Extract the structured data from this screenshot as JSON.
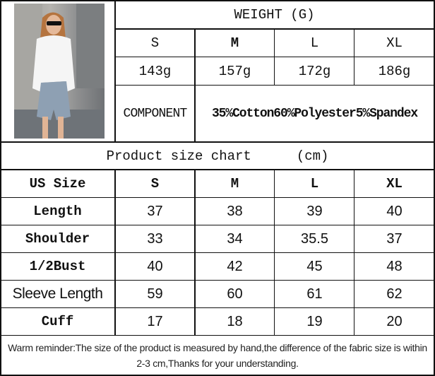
{
  "weight": {
    "title": "WEIGHT (G)",
    "sizes": [
      "S",
      "M",
      "L",
      "XL"
    ],
    "values": [
      "143g",
      "157g",
      "172g",
      "186g"
    ]
  },
  "component": {
    "label": "COMPONENT",
    "value": "35%Cotton60%Polyester5%Spandex"
  },
  "size_chart": {
    "title": "Product size chart",
    "unit": "(cm)",
    "header": [
      "US Size",
      "S",
      "M",
      "L",
      "XL"
    ],
    "rows": [
      {
        "label": "Length",
        "values": [
          "37",
          "38",
          "39",
          "40"
        ]
      },
      {
        "label": "Shoulder",
        "values": [
          "33",
          "34",
          "35.5",
          "37"
        ]
      },
      {
        "label": "1/2Bust",
        "values": [
          "40",
          "42",
          "45",
          "48"
        ]
      },
      {
        "label": "Sleeve Length",
        "values": [
          "59",
          "60",
          "61",
          "62"
        ]
      },
      {
        "label": "Cuff",
        "values": [
          "17",
          "18",
          "19",
          "20"
        ]
      }
    ]
  },
  "reminder": "Warm reminder:The size of the product is measured by hand,the difference of the fabric size is within 2-3 cm,Thanks for your understanding."
}
